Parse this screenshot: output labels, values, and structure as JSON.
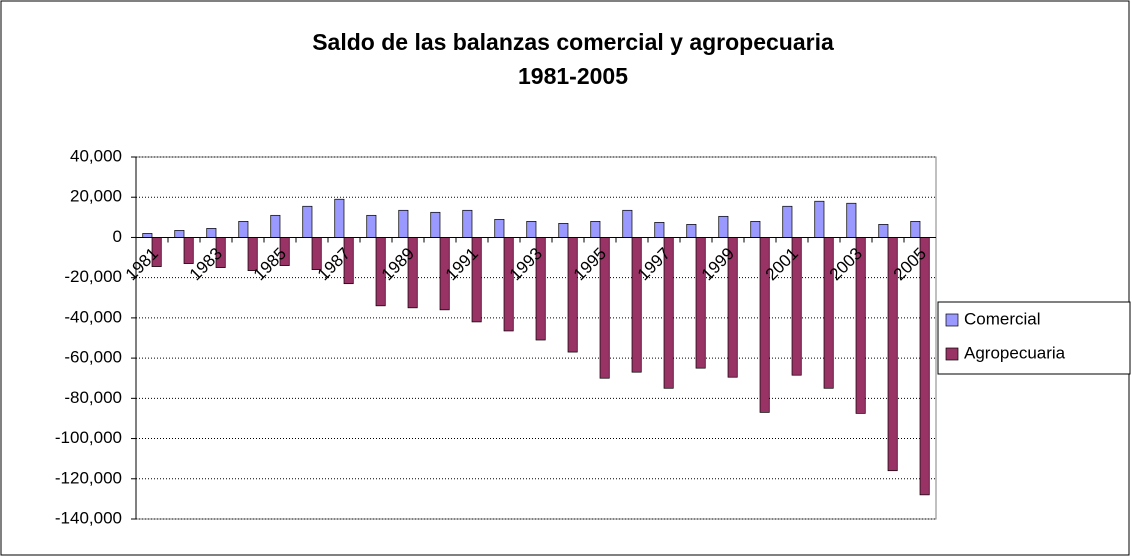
{
  "chart_data": {
    "type": "bar",
    "title": "Saldo de las balanzas comercial y agropecuaria",
    "subtitle": "1981-2005",
    "categories": [
      "1981",
      null,
      "1983",
      null,
      "1985",
      null,
      "1987",
      null,
      "1989",
      null,
      "1991",
      null,
      "1993",
      null,
      "1995",
      null,
      "1997",
      null,
      "1999",
      null,
      "2001",
      null,
      "2003",
      null,
      "2005"
    ],
    "series": [
      {
        "name": "Comercial",
        "color": "#9999ff",
        "values": [
          2000,
          3500,
          4500,
          8000,
          11000,
          15500,
          19000,
          11000,
          13500,
          12500,
          13500,
          9000,
          8000,
          7000,
          8000,
          13500,
          7500,
          6500,
          10500,
          8000,
          15500,
          18000,
          17000,
          6500,
          8000
        ]
      },
      {
        "name": "Agropecuaria",
        "color": "#993366",
        "values": [
          -14500,
          -13000,
          -15000,
          -16500,
          -14000,
          -16000,
          -23000,
          -34000,
          -35000,
          -36000,
          -42000,
          -46500,
          -51000,
          -57000,
          -70000,
          -67000,
          -75000,
          -65000,
          -69500,
          -87000,
          -68500,
          -75000,
          -87500,
          -116000,
          -128000
        ]
      }
    ],
    "ylim": [
      -140000,
      40000
    ],
    "yticks": [
      {
        "value": -140000,
        "label": "-140,000"
      },
      {
        "value": -120000,
        "label": "-120,000"
      },
      {
        "value": -100000,
        "label": "-100,000"
      },
      {
        "value": -80000,
        "label": "-80,000"
      },
      {
        "value": -60000,
        "label": "-60,000"
      },
      {
        "value": -40000,
        "label": "-40,000"
      },
      {
        "value": -20000,
        "label": "-20,000"
      },
      0,
      {
        "value": 20000,
        "label": "20,000"
      },
      {
        "value": 40000,
        "label": "40,000"
      }
    ],
    "grid": true,
    "legend": "right"
  }
}
